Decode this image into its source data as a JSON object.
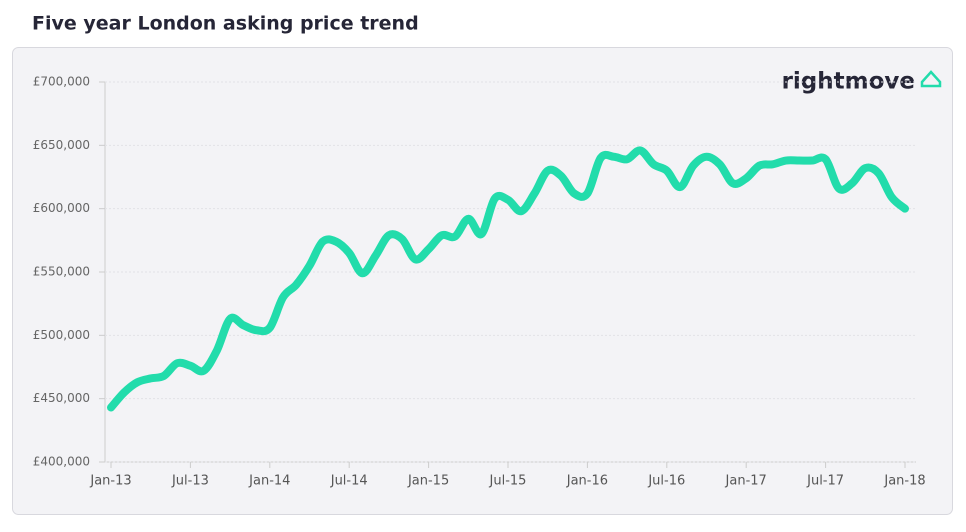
{
  "chart_data": {
    "type": "line",
    "title": "Five year London asking price trend",
    "brand": "rightmove",
    "categories": [
      "Jan-13",
      null,
      null,
      null,
      null,
      null,
      "Jul-13",
      null,
      null,
      null,
      null,
      null,
      "Jan-14",
      null,
      null,
      null,
      null,
      null,
      "Jul-14",
      null,
      null,
      null,
      null,
      null,
      "Jan-15",
      null,
      null,
      null,
      null,
      null,
      "Jul-15",
      null,
      null,
      null,
      null,
      null,
      "Jan-16",
      null,
      null,
      null,
      null,
      null,
      "Jul-16",
      null,
      null,
      null,
      null,
      null,
      "Jan-17",
      null,
      null,
      null,
      null,
      null,
      "Jul-17",
      null,
      null,
      null,
      null,
      null,
      "Jan-18"
    ],
    "values": [
      443000,
      455000,
      463000,
      466000,
      468000,
      478000,
      476000,
      472000,
      488000,
      513000,
      508000,
      504000,
      506000,
      530000,
      540000,
      555000,
      574000,
      574000,
      565000,
      549000,
      563000,
      579000,
      576000,
      560000,
      568000,
      579000,
      578000,
      592000,
      580000,
      608000,
      607000,
      598000,
      612000,
      630000,
      626000,
      612000,
      612000,
      640000,
      641000,
      639000,
      646000,
      635000,
      630000,
      617000,
      634000,
      641000,
      635000,
      620000,
      624000,
      634000,
      635000,
      638000,
      638000,
      638000,
      639000,
      616000,
      620000,
      632000,
      628000,
      609000,
      600000
    ],
    "color": "#22dcab",
    "ylim": [
      400000,
      700000
    ],
    "yticks": [
      {
        "value": 400000,
        "label": "£400,000"
      },
      {
        "value": 450000,
        "label": "£450,000"
      },
      {
        "value": 500000,
        "label": "£500,000"
      },
      {
        "value": 550000,
        "label": "£550,000"
      },
      {
        "value": 600000,
        "label": "£600,000"
      },
      {
        "value": 650000,
        "label": "£650,000"
      },
      {
        "value": 700000,
        "label": "£700,000"
      }
    ],
    "grid": true
  }
}
